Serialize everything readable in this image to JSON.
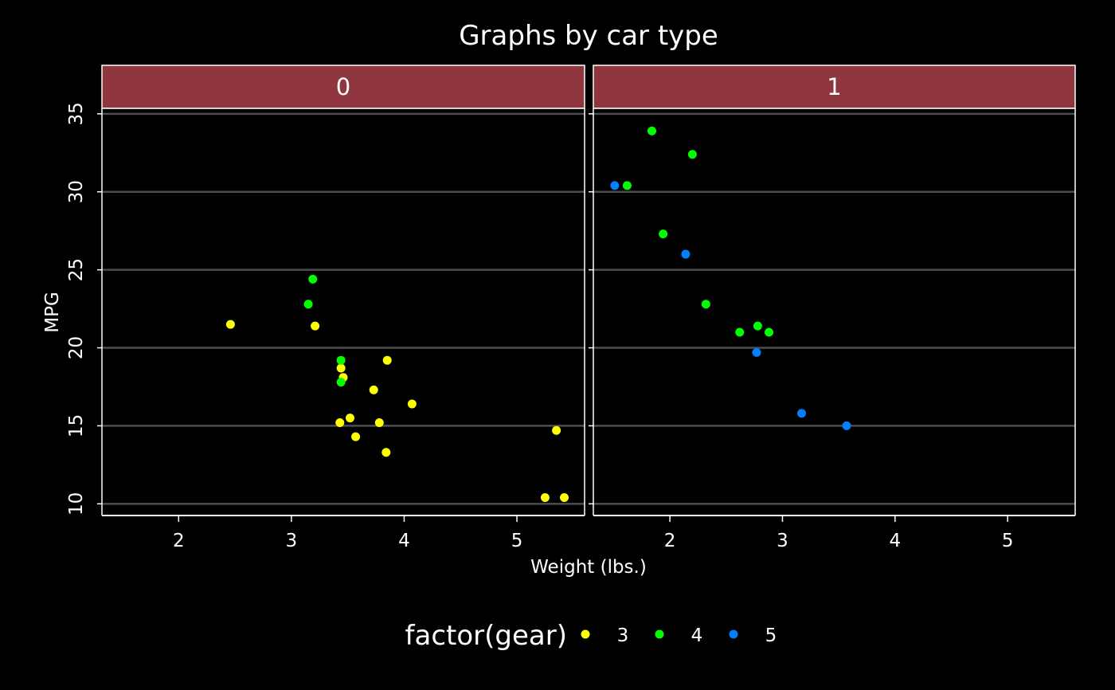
{
  "chart_data": {
    "type": "scatter",
    "title": "Graphs by car type",
    "xlabel": "Weight (lbs.)",
    "ylabel": "MPG",
    "xlim": [
      1.32,
      5.6
    ],
    "ylim": [
      9.25,
      35.35
    ],
    "x_ticks": [
      2,
      3,
      4,
      5
    ],
    "y_ticks": [
      10,
      15,
      20,
      25,
      30,
      35
    ],
    "grid": "horizontal major lines",
    "legend_placement": "bottom",
    "legend": {
      "title": "factor(gear)",
      "entries": [
        {
          "label": "3",
          "color": "#ffff00"
        },
        {
          "label": "4",
          "color": "#00ff00"
        },
        {
          "label": "5",
          "color": "#0080ff"
        }
      ]
    },
    "colors": {
      "background": "#000000",
      "strip": "#8f363e",
      "grid": "#4d4d4d",
      "text": "#ffffff"
    },
    "panels": [
      {
        "strip_label": "0",
        "points": [
          {
            "x": 2.46,
            "y": 21.5,
            "gear": "3"
          },
          {
            "x": 3.21,
            "y": 21.4,
            "gear": "3"
          },
          {
            "x": 3.44,
            "y": 18.7,
            "gear": "3"
          },
          {
            "x": 3.46,
            "y": 18.1,
            "gear": "3"
          },
          {
            "x": 3.57,
            "y": 14.3,
            "gear": "3"
          },
          {
            "x": 3.19,
            "y": 24.4,
            "gear": "4"
          },
          {
            "x": 3.15,
            "y": 22.8,
            "gear": "4"
          },
          {
            "x": 3.44,
            "y": 19.2,
            "gear": "4"
          },
          {
            "x": 3.44,
            "y": 17.8,
            "gear": "4"
          },
          {
            "x": 4.07,
            "y": 16.4,
            "gear": "3"
          },
          {
            "x": 3.73,
            "y": 17.3,
            "gear": "3"
          },
          {
            "x": 3.78,
            "y": 15.2,
            "gear": "3"
          },
          {
            "x": 5.25,
            "y": 10.4,
            "gear": "3"
          },
          {
            "x": 5.42,
            "y": 10.4,
            "gear": "3"
          },
          {
            "x": 5.35,
            "y": 14.7,
            "gear": "3"
          },
          {
            "x": 3.52,
            "y": 15.5,
            "gear": "3"
          },
          {
            "x": 3.43,
            "y": 15.2,
            "gear": "3"
          },
          {
            "x": 3.84,
            "y": 13.3,
            "gear": "3"
          },
          {
            "x": 3.85,
            "y": 19.2,
            "gear": "3"
          }
        ]
      },
      {
        "strip_label": "1",
        "points": [
          {
            "x": 2.62,
            "y": 21.0,
            "gear": "4"
          },
          {
            "x": 2.88,
            "y": 21.0,
            "gear": "4"
          },
          {
            "x": 2.32,
            "y": 22.8,
            "gear": "4"
          },
          {
            "x": 2.2,
            "y": 32.4,
            "gear": "4"
          },
          {
            "x": 1.62,
            "y": 30.4,
            "gear": "4"
          },
          {
            "x": 1.84,
            "y": 33.9,
            "gear": "4"
          },
          {
            "x": 1.94,
            "y": 27.3,
            "gear": "4"
          },
          {
            "x": 2.14,
            "y": 26.0,
            "gear": "5"
          },
          {
            "x": 1.51,
            "y": 30.4,
            "gear": "5"
          },
          {
            "x": 3.17,
            "y": 15.8,
            "gear": "5"
          },
          {
            "x": 2.77,
            "y": 19.7,
            "gear": "5"
          },
          {
            "x": 3.57,
            "y": 15.0,
            "gear": "5"
          },
          {
            "x": 2.78,
            "y": 21.4,
            "gear": "4"
          }
        ]
      }
    ]
  }
}
